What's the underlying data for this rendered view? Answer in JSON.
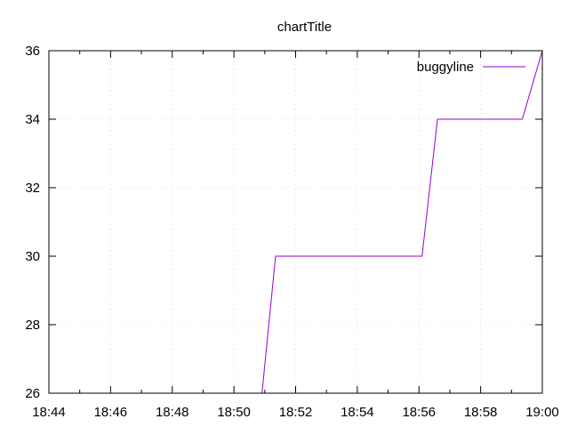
{
  "chart_data": {
    "type": "line",
    "title": "chartTitle",
    "xlabel": "",
    "ylabel": "",
    "xlim_minutes": [
      0,
      16
    ],
    "ylim": [
      26,
      36
    ],
    "grid": true,
    "legend_position": "top-right",
    "x_ticks": [
      {
        "value": 0,
        "label": "18:44"
      },
      {
        "value": 2,
        "label": "18:46"
      },
      {
        "value": 4,
        "label": "18:48"
      },
      {
        "value": 6,
        "label": "18:50"
      },
      {
        "value": 8,
        "label": "18:52"
      },
      {
        "value": 10,
        "label": "18:54"
      },
      {
        "value": 12,
        "label": "18:56"
      },
      {
        "value": 14,
        "label": "18:58"
      },
      {
        "value": 16,
        "label": "19:00"
      }
    ],
    "y_ticks": [
      {
        "value": 26,
        "label": "26"
      },
      {
        "value": 28,
        "label": "28"
      },
      {
        "value": 30,
        "label": "30"
      },
      {
        "value": 32,
        "label": "32"
      },
      {
        "value": 34,
        "label": "34"
      },
      {
        "value": 36,
        "label": "36"
      }
    ],
    "series": [
      {
        "name": "buggyline",
        "color": "#9400d3",
        "points": [
          {
            "x": 6.8,
            "y": 25.0
          },
          {
            "x": 7.35,
            "y": 30.0
          },
          {
            "x": 12.1,
            "y": 30.0
          },
          {
            "x": 12.6,
            "y": 34.0
          },
          {
            "x": 15.35,
            "y": 34.0
          },
          {
            "x": 16.0,
            "y": 36.0
          }
        ]
      }
    ]
  }
}
